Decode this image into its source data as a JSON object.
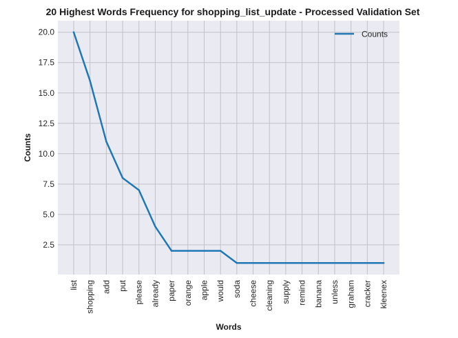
{
  "chart_data": {
    "type": "line",
    "title": "20 Highest Words Frequency for shopping_list_update - Processed Validation Set",
    "xlabel": "Words",
    "ylabel": "Counts",
    "categories": [
      "list",
      "shopping",
      "add",
      "put",
      "please",
      "already",
      "paper",
      "orange",
      "apple",
      "would",
      "soda",
      "cheese",
      "cleaning",
      "supply",
      "remind",
      "banana",
      "unless",
      "graham",
      "cracker",
      "kleenex"
    ],
    "series": [
      {
        "name": "Counts",
        "values": [
          20,
          16,
          11,
          8,
          7,
          4,
          2,
          2,
          2,
          2,
          1,
          1,
          1,
          1,
          1,
          1,
          1,
          1,
          1,
          1
        ]
      }
    ],
    "ylim": [
      0.05,
      20.95
    ],
    "yticks": [
      2.5,
      5.0,
      7.5,
      10.0,
      12.5,
      15.0,
      17.5,
      20.0
    ],
    "ytick_labels": [
      "2.5",
      "5.0",
      "7.5",
      "10.0",
      "12.5",
      "15.0",
      "17.5",
      "20.0"
    ],
    "grid": true,
    "legend": "top-right",
    "colors": {
      "line": "#1f77b4",
      "plot_bg": "#eaeaf2",
      "grid": "#c0c0c6"
    }
  }
}
